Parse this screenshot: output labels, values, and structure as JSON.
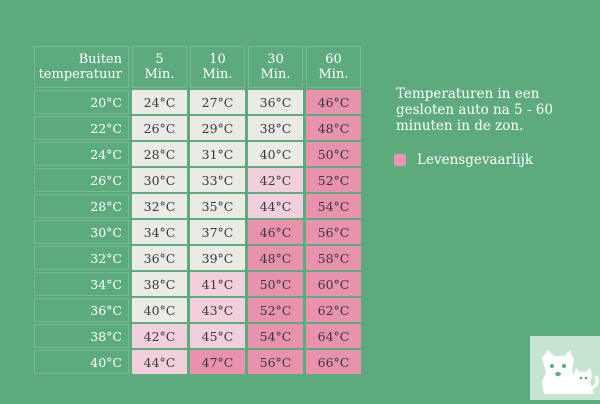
{
  "header": {
    "label_line1": "Buiten",
    "label_line2": "temperatuur",
    "columns": [
      {
        "num": "5",
        "unit": "Min."
      },
      {
        "num": "10",
        "unit": "Min."
      },
      {
        "num": "30",
        "unit": "Min."
      },
      {
        "num": "60",
        "unit": "Min."
      }
    ]
  },
  "rows": [
    {
      "outside": "20°C",
      "values": [
        "24°C",
        "27°C",
        "36°C",
        "46°C"
      ],
      "levels": [
        "safe",
        "safe",
        "safe",
        "danger"
      ]
    },
    {
      "outside": "22°C",
      "values": [
        "26°C",
        "29°C",
        "38°C",
        "48°C"
      ],
      "levels": [
        "safe",
        "safe",
        "safe",
        "danger"
      ]
    },
    {
      "outside": "24°C",
      "values": [
        "28°C",
        "31°C",
        "40°C",
        "50°C"
      ],
      "levels": [
        "safe",
        "safe",
        "safe",
        "danger"
      ]
    },
    {
      "outside": "26°C",
      "values": [
        "30°C",
        "33°C",
        "42°C",
        "52°C"
      ],
      "levels": [
        "safe",
        "safe",
        "warn",
        "danger"
      ]
    },
    {
      "outside": "28°C",
      "values": [
        "32°C",
        "35°C",
        "44°C",
        "54°C"
      ],
      "levels": [
        "safe",
        "safe",
        "warn",
        "danger"
      ]
    },
    {
      "outside": "30°C",
      "values": [
        "34°C",
        "37°C",
        "46°C",
        "56°C"
      ],
      "levels": [
        "safe",
        "safe",
        "danger",
        "danger"
      ]
    },
    {
      "outside": "32°C",
      "values": [
        "36°C",
        "39°C",
        "48°C",
        "58°C"
      ],
      "levels": [
        "safe",
        "safe",
        "danger",
        "danger"
      ]
    },
    {
      "outside": "34°C",
      "values": [
        "38°C",
        "41°C",
        "50°C",
        "60°C"
      ],
      "levels": [
        "safe",
        "warn",
        "danger",
        "danger"
      ]
    },
    {
      "outside": "36°C",
      "values": [
        "40°C",
        "43°C",
        "52°C",
        "62°C"
      ],
      "levels": [
        "safe",
        "warn",
        "danger",
        "danger"
      ]
    },
    {
      "outside": "38°C",
      "values": [
        "42°C",
        "45°C",
        "54°C",
        "64°C"
      ],
      "levels": [
        "warn",
        "warn",
        "danger",
        "danger"
      ]
    },
    {
      "outside": "40°C",
      "values": [
        "44°C",
        "47°C",
        "56°C",
        "66°C"
      ],
      "levels": [
        "warn",
        "danger",
        "danger",
        "danger"
      ]
    }
  ],
  "caption": "Temperaturen in een gesloten auto na 5 - 60 minuten in de zon.",
  "legend": {
    "label": "Levensgevaarlijk"
  },
  "colors": {
    "background": "#5daa7f",
    "safe": "#ebeae5",
    "warn": "#f2cfdc",
    "danger": "#e992ae"
  },
  "logo": {
    "icon": "dog-and-cat-silhouette-icon"
  }
}
